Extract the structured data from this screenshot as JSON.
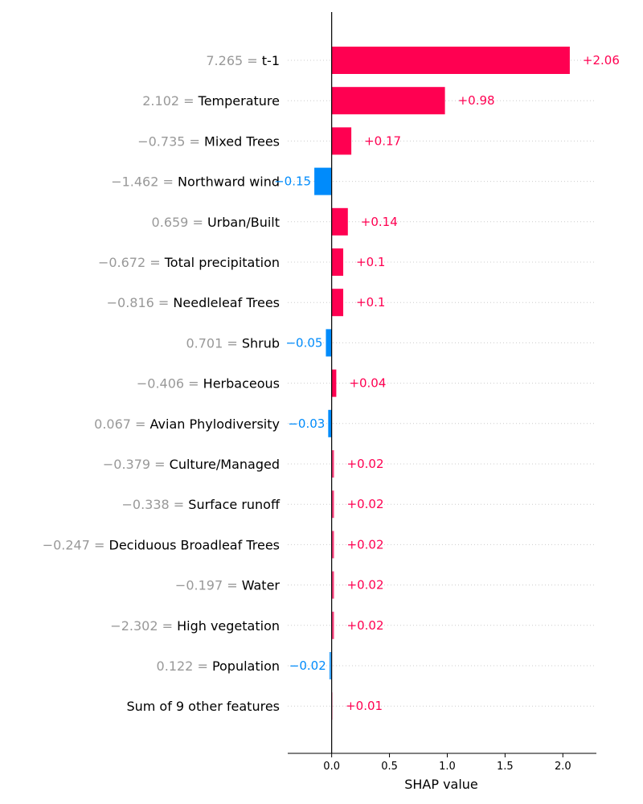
{
  "chart_data": {
    "type": "bar",
    "orientation": "horizontal",
    "xlabel": "SHAP value",
    "xlim": [
      -0.38,
      2.29
    ],
    "xticks": [
      0.0,
      0.5,
      1.0,
      1.5,
      2.0
    ],
    "xtick_labels": [
      "0.0",
      "0.5",
      "1.0",
      "1.5",
      "2.0"
    ],
    "colors": {
      "positive": "#ff0051",
      "negative": "#008bfb",
      "feature_value": "#999999",
      "gridline": "#cccccc"
    },
    "features": [
      {
        "value_text": "7.265 =",
        "name": "t-1",
        "shap": 2.06,
        "label": "+2.06"
      },
      {
        "value_text": "2.102 =",
        "name": "Temperature",
        "shap": 0.98,
        "label": "+0.98"
      },
      {
        "value_text": "−0.735 =",
        "name": "Mixed Trees",
        "shap": 0.17,
        "label": "+0.17"
      },
      {
        "value_text": "−1.462 =",
        "name": "Northward wind",
        "shap": -0.15,
        "label": "−0.15"
      },
      {
        "value_text": "0.659 =",
        "name": "Urban/Built",
        "shap": 0.14,
        "label": "+0.14"
      },
      {
        "value_text": "−0.672 =",
        "name": "Total precipitation",
        "shap": 0.1,
        "label": "+0.1"
      },
      {
        "value_text": "−0.816 =",
        "name": "Needleleaf Trees",
        "shap": 0.1,
        "label": "+0.1"
      },
      {
        "value_text": "0.701 =",
        "name": "Shrub",
        "shap": -0.05,
        "label": "−0.05"
      },
      {
        "value_text": "−0.406 =",
        "name": "Herbaceous",
        "shap": 0.04,
        "label": "+0.04"
      },
      {
        "value_text": "0.067 =",
        "name": "Avian Phylodiversity",
        "shap": -0.03,
        "label": "−0.03"
      },
      {
        "value_text": "−0.379 =",
        "name": "Culture/Managed",
        "shap": 0.02,
        "label": "+0.02"
      },
      {
        "value_text": "−0.338 =",
        "name": "Surface runoff",
        "shap": 0.02,
        "label": "+0.02"
      },
      {
        "value_text": "−0.247 =",
        "name": "Deciduous Broadleaf Trees",
        "shap": 0.02,
        "label": "+0.02"
      },
      {
        "value_text": "−0.197 =",
        "name": "Water",
        "shap": 0.02,
        "label": "+0.02"
      },
      {
        "value_text": "−2.302 =",
        "name": "High vegetation",
        "shap": 0.02,
        "label": "+0.02"
      },
      {
        "value_text": "0.122 =",
        "name": "Population",
        "shap": -0.02,
        "label": "−0.02"
      },
      {
        "value_text": "",
        "name": "Sum of 9 other features",
        "shap": 0.01,
        "label": "+0.01"
      }
    ]
  }
}
